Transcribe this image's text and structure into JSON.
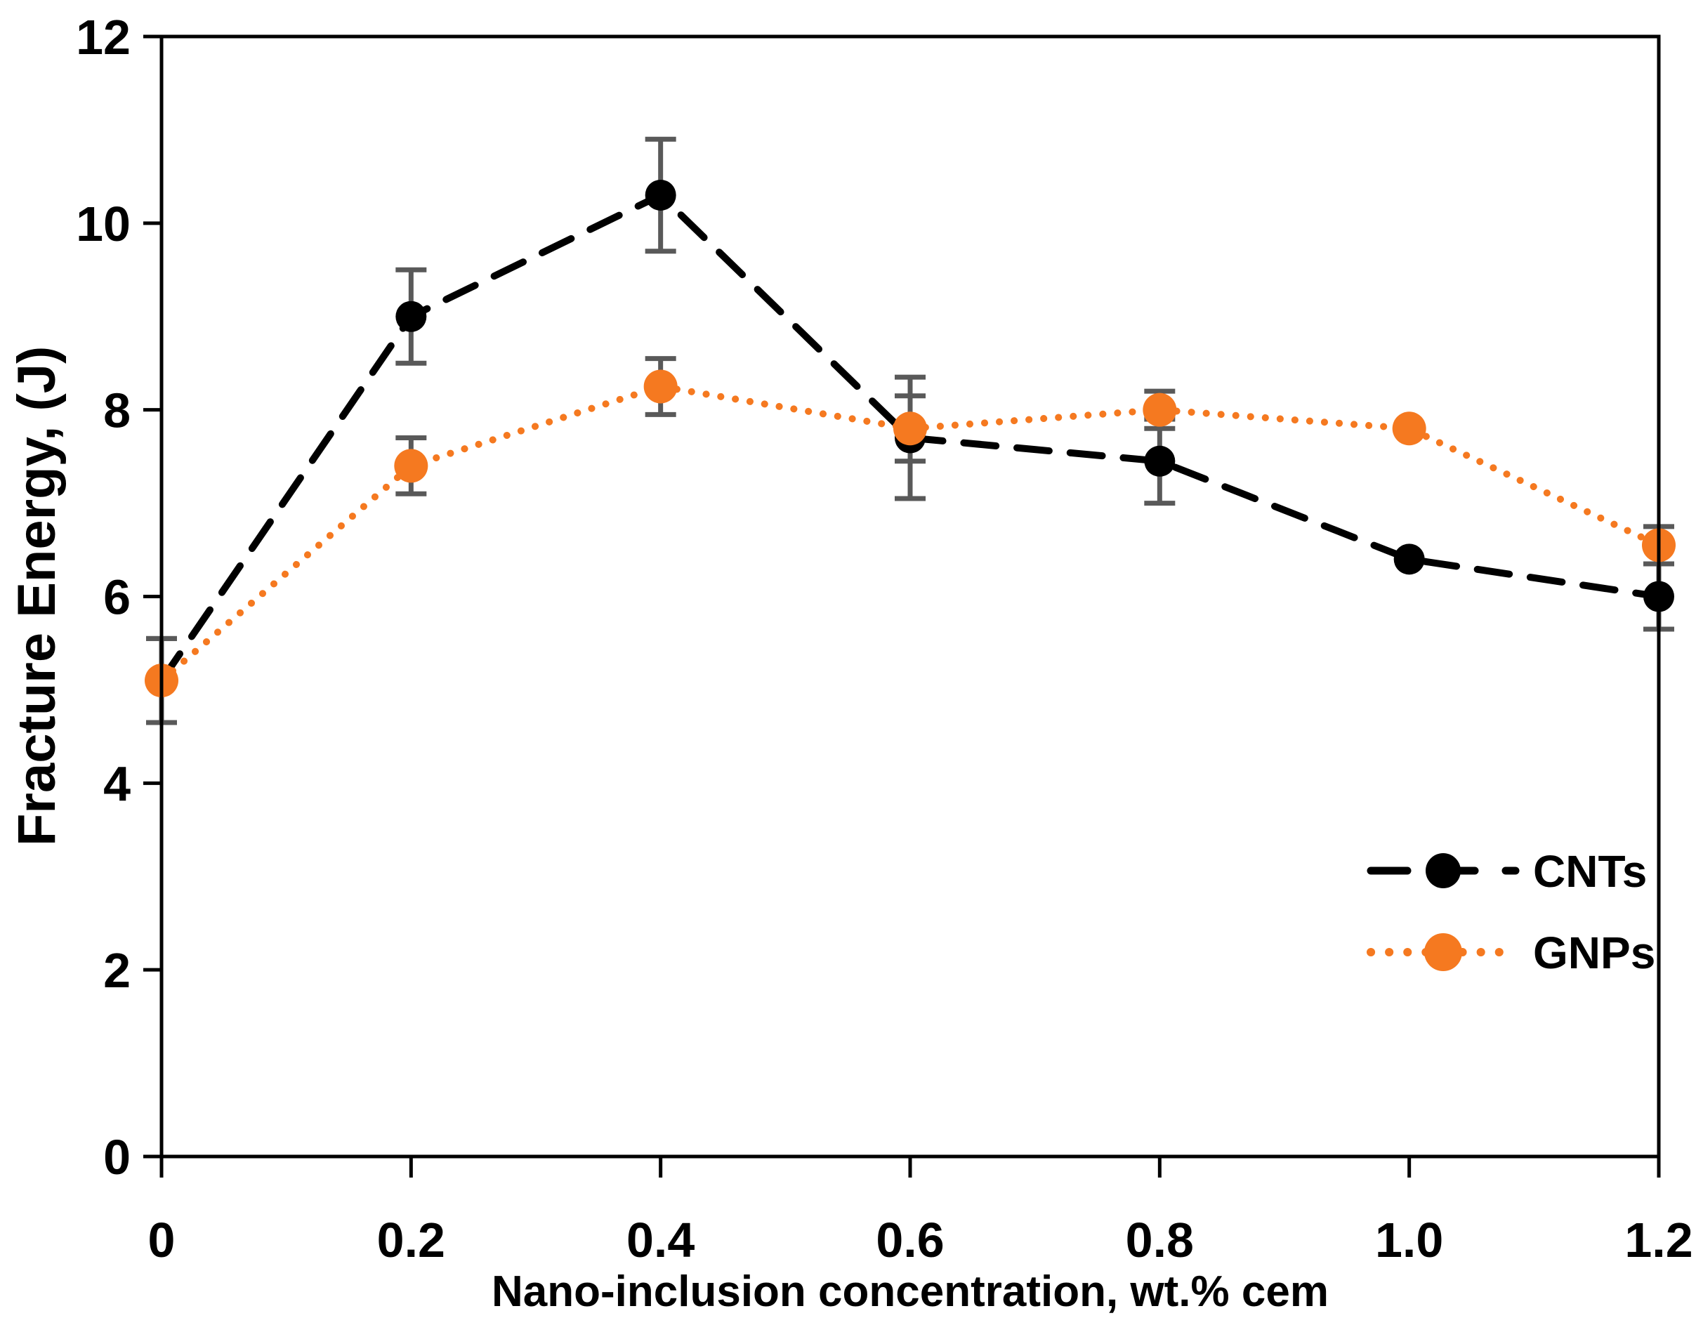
{
  "figure": {
    "background": "#ffffff",
    "frame_color": "#000000",
    "error_bar_color": "#595959"
  },
  "chart_data": {
    "type": "line",
    "title": "",
    "xlabel": "Nano-inclusion concentration, wt.% cem",
    "ylabel": "Fracture Energy, (J)",
    "xlim": [
      0,
      1.2
    ],
    "ylim": [
      0,
      12
    ],
    "x_ticks": [
      0,
      0.2,
      0.4,
      0.6,
      0.8,
      1.0,
      1.2
    ],
    "x_tick_labels": [
      "0",
      "0.2",
      "0.4",
      "0.6",
      "0.8",
      "1.0",
      "1.2"
    ],
    "y_ticks": [
      0,
      2,
      4,
      6,
      8,
      10,
      12
    ],
    "y_tick_labels": [
      "0",
      "2",
      "4",
      "6",
      "8",
      "10",
      "12"
    ],
    "grid": false,
    "frame_box": true,
    "legend_position": "inside-lower-right",
    "x": [
      0,
      0.2,
      0.4,
      0.6,
      0.8,
      1.0,
      1.2
    ],
    "series": [
      {
        "name": "CNTs",
        "color": "#000000",
        "line_style": "dashed",
        "marker": "circle",
        "marker_radius": 22,
        "values": [
          5.1,
          9.0,
          10.3,
          7.7,
          7.45,
          6.4,
          6.0
        ],
        "error": [
          0.45,
          0.5,
          0.6,
          0.65,
          0.45,
          0,
          0.35
        ]
      },
      {
        "name": "GNPs",
        "color": "#F57920",
        "line_style": "dotted",
        "marker": "circle",
        "marker_radius": 24,
        "values": [
          5.1,
          7.4,
          8.25,
          7.8,
          8.0,
          7.8,
          6.55
        ],
        "error": [
          0.45,
          0.3,
          0.3,
          0.35,
          0.2,
          0,
          0.2
        ]
      }
    ]
  }
}
